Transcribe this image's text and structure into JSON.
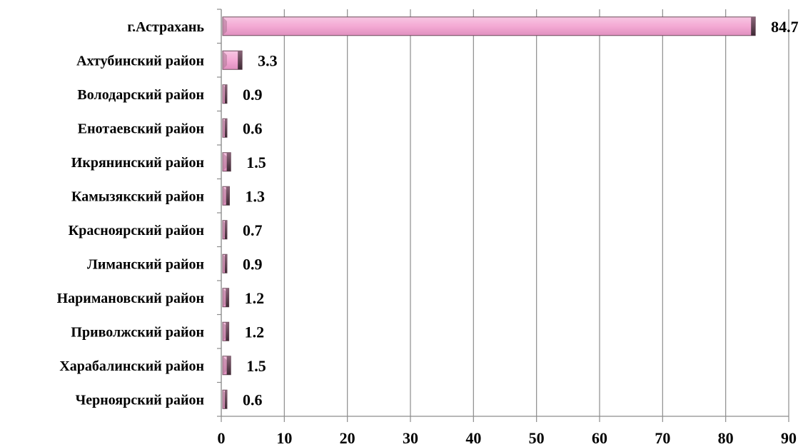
{
  "chart_data": {
    "type": "bar",
    "orientation": "horizontal",
    "categories": [
      "г.Астрахань",
      "Ахтубинский район",
      "Володарский район",
      "Енотаевский район",
      "Икрянинский район",
      "Камызякский район",
      "Красноярский район",
      "Лиманский район",
      "Наримановский район",
      "Приволжский район",
      "Харабалинский район",
      "Черноярский район"
    ],
    "values": [
      84.7,
      3.3,
      0.9,
      0.6,
      1.5,
      1.3,
      0.7,
      0.9,
      1.2,
      1.2,
      1.5,
      0.6
    ],
    "data_labels": [
      "84.7",
      "3.3",
      "0.9",
      "0.6",
      "1.5",
      "1.3",
      "0.7",
      "0.9",
      "1.2",
      "1.2",
      "1.5",
      "0.6"
    ],
    "title": "",
    "xlabel": "",
    "ylabel": "",
    "xlim": [
      0,
      90
    ],
    "xticks": [
      0,
      10,
      20,
      30,
      40,
      50,
      60,
      70,
      80,
      90
    ],
    "grid": "vertical",
    "legend": "none",
    "bar_color": "#f4a9d4",
    "bar_edge_color": "#6b4a5a"
  }
}
